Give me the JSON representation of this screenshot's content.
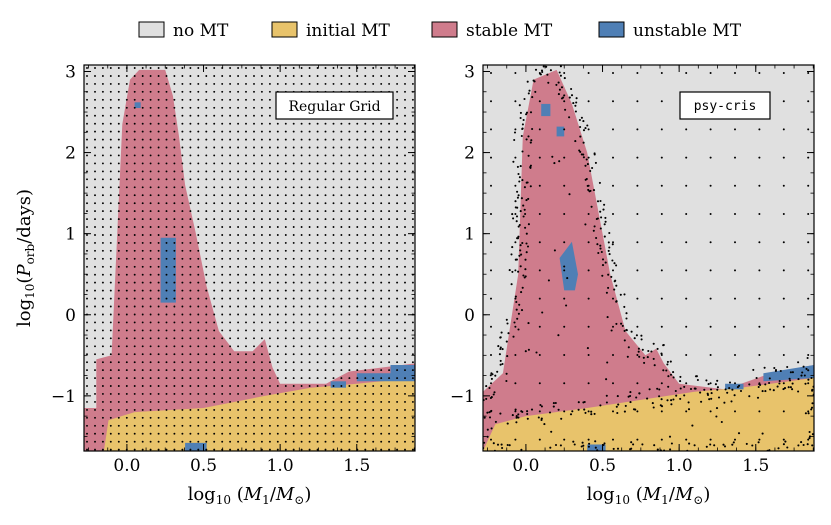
{
  "colors": {
    "no_mt": "#e0e0e0",
    "initial_mt": "#e8c36b",
    "stable_mt": "#cf7c8c",
    "unstable_mt": "#4f7fb5"
  },
  "legend": {
    "items": [
      {
        "key": "no_mt",
        "label": "no MT"
      },
      {
        "key": "initial_mt",
        "label": "initial MT"
      },
      {
        "key": "stable_mt",
        "label": "stable MT"
      },
      {
        "key": "unstable_mt",
        "label": "unstable MT"
      }
    ]
  },
  "axes": {
    "xlabel": "log10(M1/M⊙)",
    "ylabel": "log10(Porb/days)"
  },
  "chart_data": [
    {
      "type": "heatmap",
      "panel_label": "Regular Grid",
      "xlim": [
        -0.28,
        1.88
      ],
      "ylim": [
        -1.68,
        3.08
      ],
      "xticks": [
        0.0,
        0.5,
        1.0,
        1.5
      ],
      "yticks": [
        -1,
        0,
        1,
        2,
        3
      ],
      "sampling": "regular grid",
      "regions": {
        "stable_mt": [
          [
            -0.28,
            -1.68
          ],
          [
            -0.28,
            -1.15
          ],
          [
            -0.2,
            -1.15
          ],
          [
            -0.2,
            -0.55
          ],
          [
            -0.1,
            -0.5
          ],
          [
            -0.03,
            2.35
          ],
          [
            0.02,
            2.9
          ],
          [
            0.08,
            3.02
          ],
          [
            0.25,
            3.02
          ],
          [
            0.3,
            2.7
          ],
          [
            0.34,
            2.2
          ],
          [
            0.38,
            1.6
          ],
          [
            0.45,
            1.0
          ],
          [
            0.52,
            0.35
          ],
          [
            0.6,
            -0.2
          ],
          [
            0.7,
            -0.45
          ],
          [
            0.82,
            -0.45
          ],
          [
            0.9,
            -0.3
          ],
          [
            0.95,
            -0.65
          ],
          [
            1.0,
            -0.85
          ],
          [
            1.3,
            -0.85
          ],
          [
            1.45,
            -0.7
          ],
          [
            1.88,
            -0.6
          ],
          [
            1.88,
            -1.68
          ]
        ],
        "initial_mt": [
          [
            -0.15,
            -1.68
          ],
          [
            -0.12,
            -1.3
          ],
          [
            0.05,
            -1.2
          ],
          [
            0.5,
            -1.15
          ],
          [
            0.9,
            -1.0
          ],
          [
            1.2,
            -0.9
          ],
          [
            1.5,
            -0.85
          ],
          [
            1.88,
            -0.78
          ],
          [
            1.88,
            -1.68
          ]
        ],
        "unstable_mt": [
          [
            [
              0.22,
              0.15
            ],
            [
              0.22,
              0.95
            ],
            [
              0.32,
              0.95
            ],
            [
              0.32,
              0.15
            ]
          ],
          [
            [
              0.05,
              2.55
            ],
            [
              0.05,
              2.62
            ],
            [
              0.09,
              2.62
            ],
            [
              0.09,
              2.55
            ]
          ],
          [
            [
              0.38,
              -1.68
            ],
            [
              0.38,
              -1.58
            ],
            [
              0.52,
              -1.58
            ],
            [
              0.52,
              -1.68
            ]
          ],
          [
            [
              1.33,
              -0.82
            ],
            [
              1.33,
              -0.9
            ],
            [
              1.43,
              -0.9
            ],
            [
              1.43,
              -0.82
            ]
          ],
          [
            [
              1.5,
              -0.72
            ],
            [
              1.5,
              -0.82
            ],
            [
              1.88,
              -0.82
            ],
            [
              1.88,
              -0.62
            ],
            [
              1.72,
              -0.62
            ],
            [
              1.72,
              -0.72
            ]
          ]
        ]
      }
    },
    {
      "type": "heatmap",
      "panel_label": "psy-cris",
      "xlim": [
        -0.28,
        1.88
      ],
      "ylim": [
        -1.68,
        3.08
      ],
      "xticks": [
        0.0,
        0.5,
        1.0,
        1.5
      ],
      "yticks": [
        -1,
        0,
        1,
        2,
        3
      ],
      "sampling": "adaptive (psy-cris)",
      "regions": {
        "stable_mt": [
          [
            -0.28,
            -1.68
          ],
          [
            -0.28,
            -0.95
          ],
          [
            -0.15,
            -0.72
          ],
          [
            -0.05,
            0.5
          ],
          [
            -0.02,
            2.2
          ],
          [
            0.05,
            2.9
          ],
          [
            0.2,
            3.02
          ],
          [
            0.3,
            2.6
          ],
          [
            0.4,
            2.0
          ],
          [
            0.48,
            1.2
          ],
          [
            0.55,
            0.5
          ],
          [
            0.65,
            -0.2
          ],
          [
            0.78,
            -0.5
          ],
          [
            0.85,
            -0.42
          ],
          [
            0.9,
            -0.6
          ],
          [
            1.0,
            -0.85
          ],
          [
            1.3,
            -0.92
          ],
          [
            1.6,
            -0.72
          ],
          [
            1.88,
            -0.62
          ],
          [
            1.88,
            -1.68
          ]
        ],
        "initial_mt": [
          [
            -0.28,
            -1.68
          ],
          [
            -0.2,
            -1.35
          ],
          [
            0.0,
            -1.25
          ],
          [
            0.4,
            -1.15
          ],
          [
            0.75,
            -1.05
          ],
          [
            1.1,
            -0.95
          ],
          [
            1.4,
            -0.9
          ],
          [
            1.88,
            -0.78
          ],
          [
            1.88,
            -1.68
          ]
        ],
        "unstable_mt": [
          [
            [
              0.25,
              0.3
            ],
            [
              0.22,
              0.7
            ],
            [
              0.3,
              0.9
            ],
            [
              0.34,
              0.5
            ],
            [
              0.32,
              0.3
            ]
          ],
          [
            [
              0.1,
              2.45
            ],
            [
              0.1,
              2.6
            ],
            [
              0.16,
              2.6
            ],
            [
              0.16,
              2.45
            ]
          ],
          [
            [
              0.2,
              2.2
            ],
            [
              0.2,
              2.32
            ],
            [
              0.25,
              2.32
            ],
            [
              0.25,
              2.2
            ]
          ],
          [
            [
              0.4,
              -1.68
            ],
            [
              0.4,
              -1.6
            ],
            [
              0.52,
              -1.6
            ],
            [
              0.52,
              -1.68
            ]
          ],
          [
            [
              1.3,
              -0.85
            ],
            [
              1.3,
              -0.92
            ],
            [
              1.42,
              -0.92
            ],
            [
              1.42,
              -0.85
            ]
          ],
          [
            [
              1.55,
              -0.72
            ],
            [
              1.55,
              -0.82
            ],
            [
              1.88,
              -0.78
            ],
            [
              1.88,
              -0.62
            ]
          ]
        ]
      }
    }
  ]
}
